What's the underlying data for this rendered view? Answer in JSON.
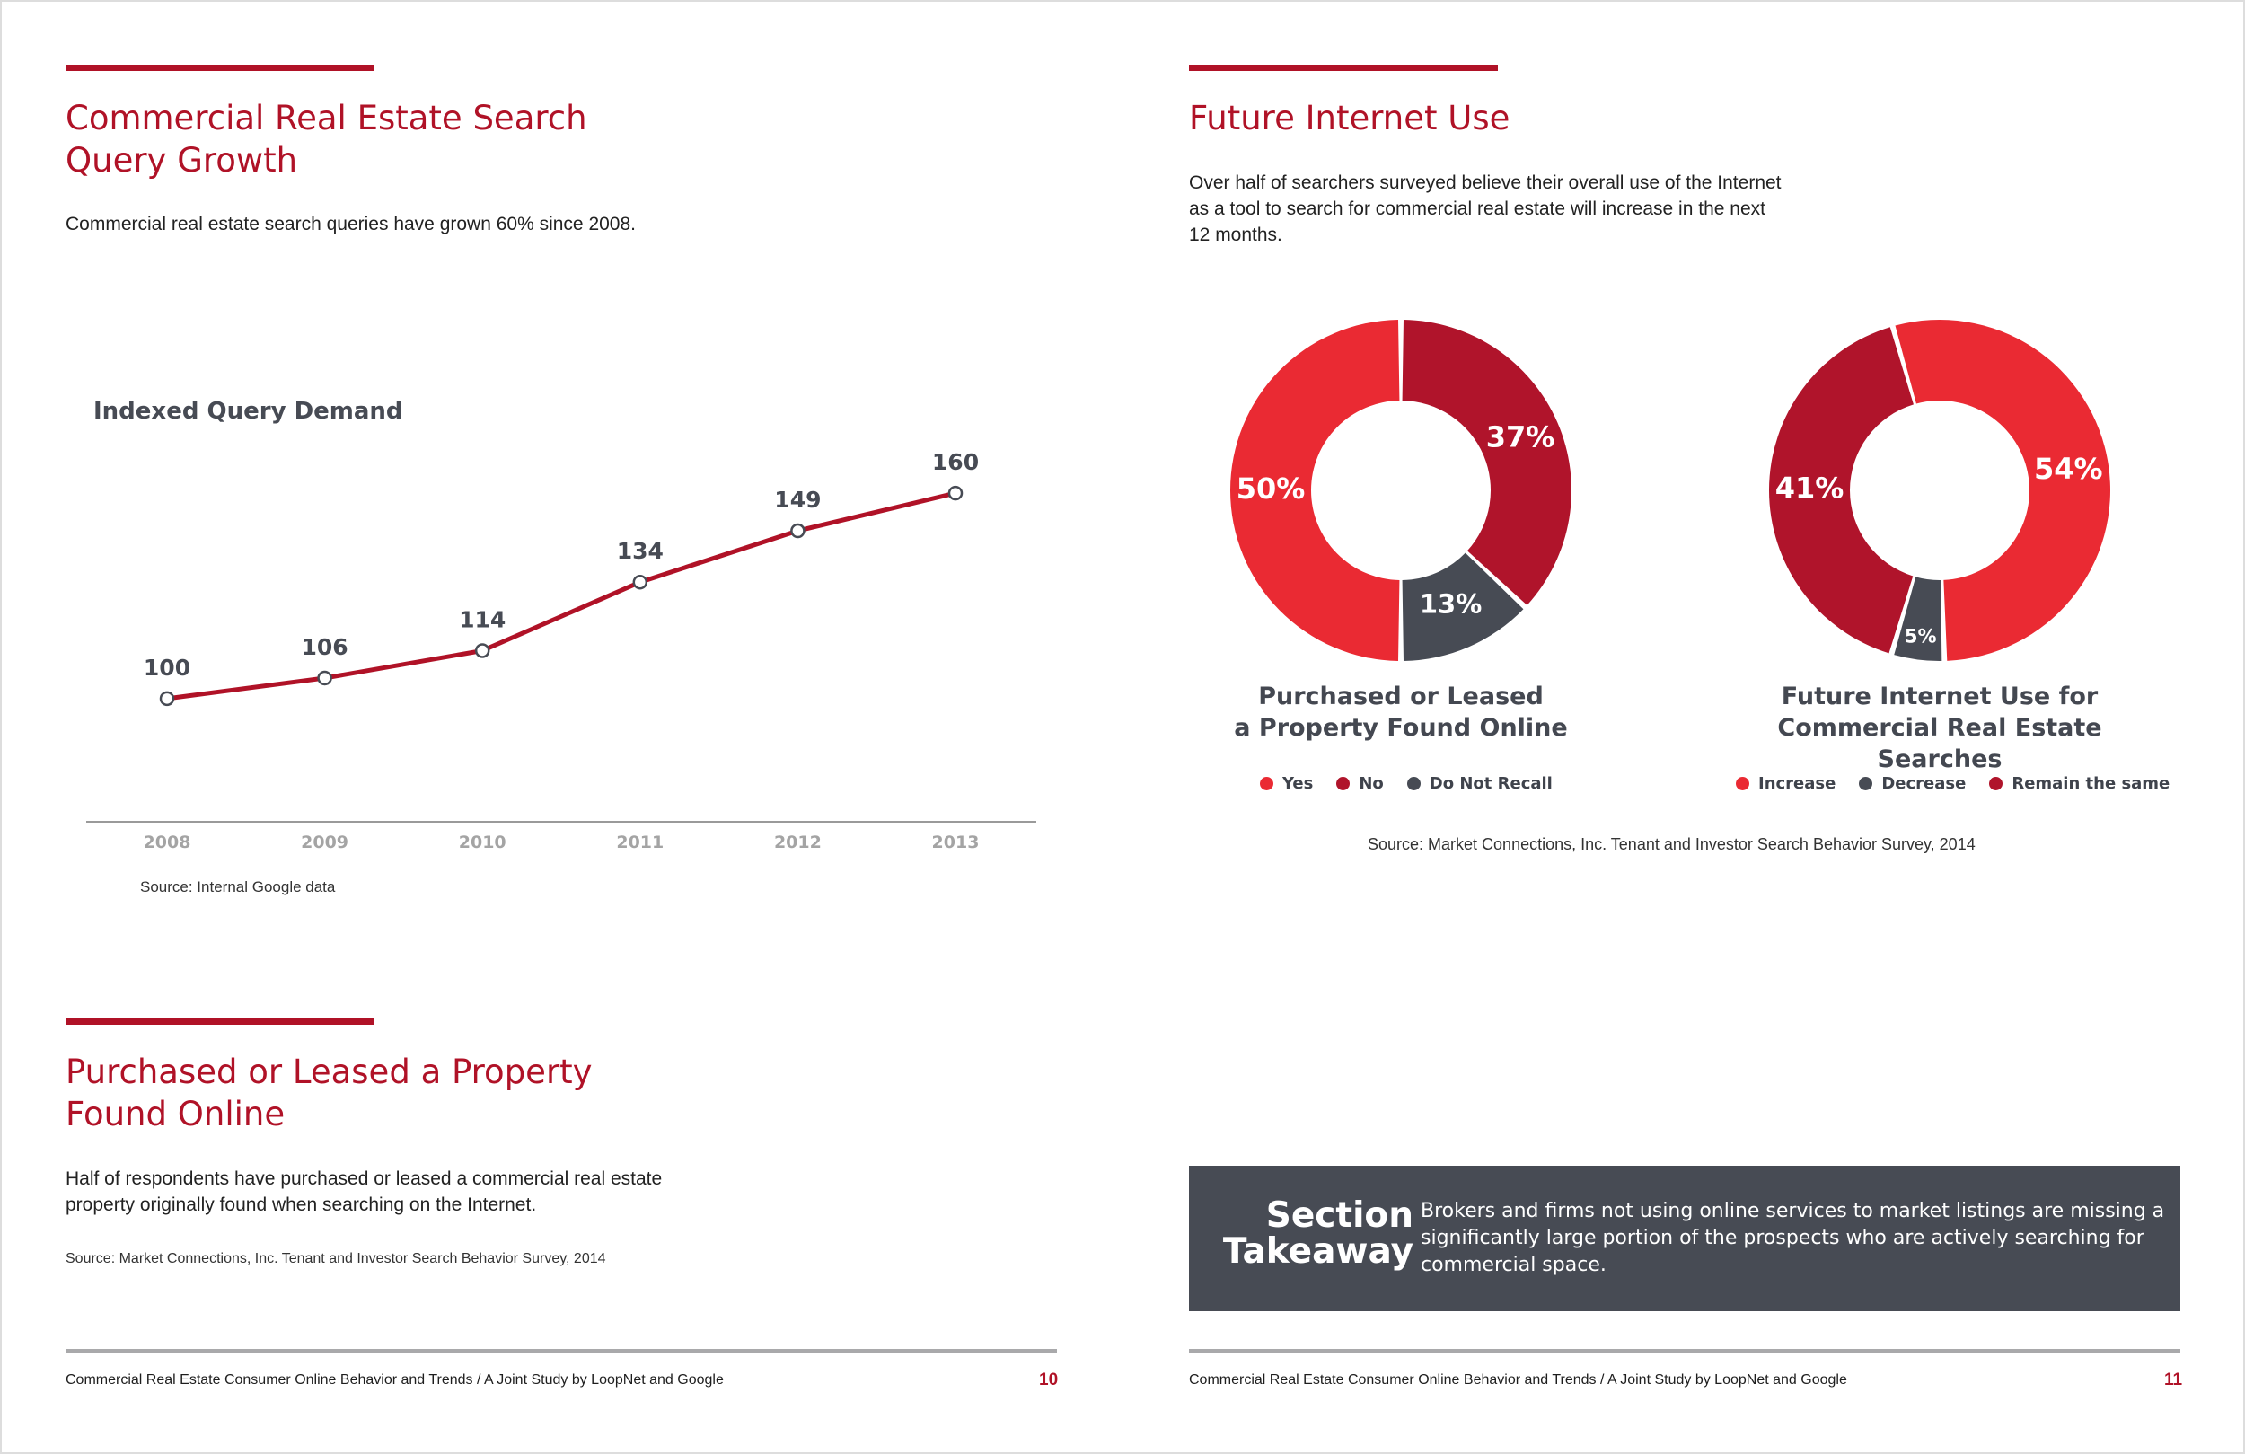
{
  "left_page": {
    "chart_title": "Commercial Real Estate Search Query Growth",
    "chart_title_line1": "Commercial Real Estate Search",
    "chart_title_line2": "Query Growth",
    "chart_description": "Commercial real estate search queries have grown 60% since 2008.",
    "chart_source": "Source: Internal Google data",
    "section2_title_line1": "Purchased or Leased a Property",
    "section2_title_line2": "Found Online",
    "section2_text_line1": "Half of respondents have purchased or leased a commercial real estate",
    "section2_text_line2": "property originally found when searching on the Internet.",
    "section2_source": "Source: Market Connections, Inc. Tenant and Investor Search Behavior Survey, 2014",
    "footer": "Commercial Real Estate Consumer Online Behavior and Trends  /  A Joint Study by LoopNet and Google",
    "page_number": "10"
  },
  "right_page": {
    "title": "Future Internet Use",
    "description_line1": "Over half of searchers surveyed believe their overall use of the Internet",
    "description_line2": "as a tool to search for commercial real estate will increase in the next",
    "description_line3": "12 months.",
    "donut1_title_line1": "Purchased or Leased",
    "donut1_title_line2": "a Property Found Online",
    "donut2_title_line1": "Future Internet Use for",
    "donut2_title_line2": "Commercial Real Estate Searches",
    "source": "Source: Market Connections, Inc. Tenant and Investor Search Behavior Survey, 2014",
    "takeaway_title_line1": "Section",
    "takeaway_title_line2": "Takeaway",
    "takeaway_text": "Brokers and firms not using online services to market listings are missing a significantly large portion of the prospects who are actively searching for commercial space.",
    "footer": "Commercial Real Estate Consumer Online Behavior and Trends  /  A Joint Study by LoopNet and Google",
    "page_number": "11"
  },
  "colors": {
    "brand_red": "#b01227",
    "bright_red": "#ea2a33",
    "dark_red": "#b0142b",
    "slate": "#474b54",
    "line_red": "#b01227"
  },
  "chart_data": [
    {
      "type": "line",
      "title": "Indexed Query Demand",
      "xlabel": "",
      "ylabel": "",
      "x": [
        "2008",
        "2009",
        "2010",
        "2011",
        "2012",
        "2013"
      ],
      "values": [
        100,
        106,
        114,
        134,
        149,
        160
      ],
      "data_labels": [
        "100",
        "106",
        "114",
        "134",
        "149",
        "160"
      ],
      "ylim": [
        90,
        165
      ],
      "grid": false
    },
    {
      "type": "pie",
      "title": "Purchased or Leased a Property Found Online",
      "style": "donut",
      "slices": [
        {
          "name": "Yes",
          "value": 50,
          "label": "50%",
          "color": "#ea2a33"
        },
        {
          "name": "No",
          "value": 37,
          "label": "37%",
          "color": "#b0142b"
        },
        {
          "name": "Do Not Recall",
          "value": 13,
          "label": "13%",
          "color": "#474b54"
        }
      ],
      "legend_placement": "bottom"
    },
    {
      "type": "pie",
      "title": "Future Internet Use for Commercial Real Estate Searches",
      "style": "donut",
      "slices": [
        {
          "name": "Increase",
          "value": 54,
          "label": "54%",
          "color": "#ea2a33"
        },
        {
          "name": "Decrease",
          "value": 5,
          "label": "5%",
          "color": "#474b54"
        },
        {
          "name": "Remain the same",
          "value": 41,
          "label": "41%",
          "color": "#b0142b"
        }
      ],
      "legend_placement": "bottom"
    }
  ]
}
